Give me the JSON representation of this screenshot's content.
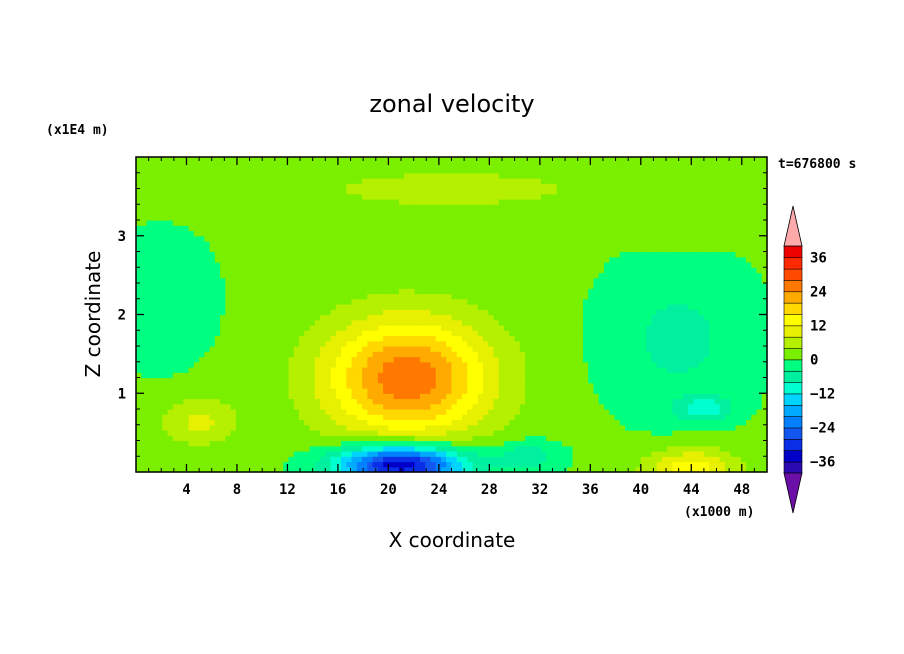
{
  "chart_data": {
    "type": "heatmap",
    "title": "zonal velocity",
    "xlabel": "X coordinate",
    "ylabel": "Z coordinate",
    "x_unit": "(x1000 m)",
    "y_unit": "(x1E4 m)",
    "time_label": "t=676800 s",
    "xlim": [
      0,
      50
    ],
    "ylim": [
      0,
      4
    ],
    "x_ticks": [
      4,
      8,
      12,
      16,
      20,
      24,
      28,
      32,
      36,
      40,
      44,
      48
    ],
    "y_ticks": [
      1,
      2,
      3
    ],
    "x_tick_labels": [
      "4",
      "8",
      "12",
      "16",
      "20",
      "24",
      "28",
      "32",
      "36",
      "40",
      "44",
      "48"
    ],
    "y_tick_labels": [
      "1",
      "2",
      "3"
    ],
    "colorbar": {
      "min": -40,
      "max": 40,
      "step": 4,
      "extend": "both",
      "tick_values": [
        36,
        24,
        12,
        0,
        -12,
        -24,
        -36
      ],
      "tick_labels": [
        "36",
        "24",
        "12",
        "0",
        "−12",
        "−24",
        "−36"
      ],
      "colors": [
        "#6b0fa6",
        "#2a0ab0",
        "#0000c8",
        "#0a2ee6",
        "#1456f0",
        "#0080ff",
        "#00aaff",
        "#00d4ff",
        "#00ffd0",
        "#00f0a0",
        "#00ff80",
        "#3ef02c",
        "#7af000",
        "#b4f000",
        "#e6f000",
        "#ffff00",
        "#ffd800",
        "#ffaa00",
        "#ff7800",
        "#ff4a00",
        "#ff2a00",
        "#ee0000",
        "#ffaaaa"
      ]
    },
    "features": [
      {
        "name": "positive jet core",
        "x": 21.5,
        "z": 1.2,
        "sx": 6.5,
        "sz": 0.75,
        "value": 26
      },
      {
        "name": "negative near-surface flow",
        "x": 21,
        "z": 0.1,
        "sx": 5,
        "sz": 0.25,
        "value": -38
      },
      {
        "name": "negative near-surface flow east",
        "x": 31,
        "z": 0.2,
        "sx": 2.5,
        "sz": 0.2,
        "value": -8
      },
      {
        "name": "positive near-surface flow east",
        "x": 44,
        "z": 0.05,
        "sx": 3.5,
        "sz": 0.25,
        "value": 14
      },
      {
        "name": "positive low-level flow west",
        "x": 5,
        "z": 0.65,
        "sx": 3,
        "sz": 0.3,
        "value": 8
      },
      {
        "name": "upper-level westerly band",
        "x": 25,
        "z": 3.6,
        "sx": 16,
        "sz": 0.35,
        "value": 4
      },
      {
        "name": "upper-level westerly east",
        "x": 44,
        "z": 3.0,
        "sx": 4,
        "sz": 0.15,
        "value": 3
      },
      {
        "name": "weak easterly region west",
        "x": 2,
        "z": 2.2,
        "sx": 4,
        "sz": 0.8,
        "value": -5
      },
      {
        "name": "weak easterly region east",
        "x": 43,
        "z": 1.7,
        "sx": 6,
        "sz": 1.0,
        "value": -6
      },
      {
        "name": "easterly pocket",
        "x": 45,
        "z": 0.8,
        "sx": 2,
        "sz": 0.15,
        "value": -11
      }
    ]
  }
}
